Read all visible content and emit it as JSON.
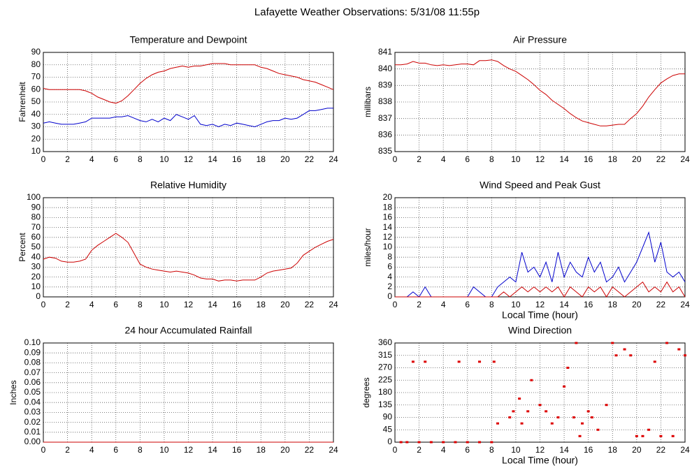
{
  "title": "Lafayette Weather Observations: 5/31/08 11:55p",
  "chart_data": [
    {
      "type": "line",
      "title": "Temperature and Dewpoint",
      "ylabel": "Fahrenheit",
      "x": [
        0,
        0.5,
        1,
        1.5,
        2,
        2.5,
        3,
        3.5,
        4,
        4.5,
        5,
        5.5,
        6,
        6.5,
        7,
        7.5,
        8,
        8.5,
        9,
        9.5,
        10,
        10.5,
        11,
        11.5,
        12,
        12.5,
        13,
        13.5,
        14,
        14.5,
        15,
        15.5,
        16,
        16.5,
        17,
        17.5,
        18,
        18.5,
        19,
        19.5,
        20,
        20.5,
        21,
        21.5,
        22,
        22.5,
        23,
        23.5,
        24
      ],
      "series": [
        {
          "color": "#cc0000",
          "values": [
            61,
            60,
            60,
            60,
            60,
            60,
            60,
            59,
            57,
            54,
            52,
            50,
            49,
            51,
            55,
            60,
            65,
            69,
            72,
            74,
            75,
            77,
            78,
            79,
            78,
            79,
            79,
            80,
            81,
            81,
            81,
            80,
            80,
            80,
            80,
            80,
            78,
            77,
            75,
            73,
            72,
            71,
            70,
            68,
            67,
            66,
            64,
            62,
            60
          ]
        },
        {
          "color": "#0000cc",
          "values": [
            33,
            34,
            33,
            32,
            32,
            32,
            33,
            34,
            37,
            37,
            37,
            37,
            38,
            38,
            39,
            37,
            35,
            34,
            36,
            34,
            37,
            35,
            40,
            38,
            36,
            39,
            32,
            31,
            32,
            30,
            32,
            31,
            33,
            32,
            31,
            30,
            32,
            34,
            35,
            35,
            37,
            36,
            37,
            40,
            43,
            43,
            44,
            45,
            45
          ]
        }
      ],
      "xlim": [
        0,
        24
      ],
      "xticks": [
        0,
        2,
        4,
        6,
        8,
        10,
        12,
        14,
        16,
        18,
        20,
        22,
        24
      ],
      "ylim": [
        10,
        90
      ],
      "yticks": [
        10,
        20,
        30,
        40,
        50,
        60,
        70,
        80,
        90
      ],
      "grid": true
    },
    {
      "type": "line",
      "title": "Air Pressure",
      "ylabel": "millibars",
      "x": [
        0,
        0.5,
        1,
        1.5,
        2,
        2.5,
        3,
        3.5,
        4,
        4.5,
        5,
        5.5,
        6,
        6.5,
        7,
        7.5,
        8,
        8.5,
        9,
        9.5,
        10,
        10.5,
        11,
        11.5,
        12,
        12.5,
        13,
        13.5,
        14,
        14.5,
        15,
        15.5,
        16,
        16.5,
        17,
        17.5,
        18,
        18.5,
        19,
        19.5,
        20,
        20.5,
        21,
        21.5,
        22,
        22.5,
        23,
        23.5,
        24
      ],
      "series": [
        {
          "color": "#cc0000",
          "values": [
            840.25,
            840.25,
            840.3,
            840.45,
            840.35,
            840.35,
            840.25,
            840.2,
            840.25,
            840.2,
            840.25,
            840.3,
            840.3,
            840.25,
            840.5,
            840.5,
            840.55,
            840.45,
            840.2,
            840.0,
            839.85,
            839.6,
            839.35,
            839.05,
            838.7,
            838.45,
            838.1,
            837.85,
            837.6,
            837.3,
            837.05,
            836.85,
            836.75,
            836.65,
            836.55,
            836.55,
            836.6,
            836.65,
            836.65,
            837.0,
            837.3,
            837.75,
            838.3,
            838.75,
            839.15,
            839.4,
            839.6,
            839.7,
            839.7
          ]
        }
      ],
      "xlim": [
        0,
        24
      ],
      "xticks": [
        0,
        2,
        4,
        6,
        8,
        10,
        12,
        14,
        16,
        18,
        20,
        22,
        24
      ],
      "ylim": [
        835,
        841
      ],
      "yticks": [
        835,
        836,
        837,
        838,
        839,
        840,
        841
      ],
      "grid": true
    },
    {
      "type": "line",
      "title": "Relative Humidity",
      "ylabel": "Percent",
      "x": [
        0,
        0.5,
        1,
        1.5,
        2,
        2.5,
        3,
        3.5,
        4,
        4.5,
        5,
        5.5,
        6,
        6.5,
        7,
        7.5,
        8,
        8.5,
        9,
        9.5,
        10,
        10.5,
        11,
        11.5,
        12,
        12.5,
        13,
        13.5,
        14,
        14.5,
        15,
        15.5,
        16,
        16.5,
        17,
        17.5,
        18,
        18.5,
        19,
        19.5,
        20,
        20.5,
        21,
        21.5,
        22,
        22.5,
        23,
        23.5,
        24
      ],
      "series": [
        {
          "color": "#cc0000",
          "values": [
            38,
            40,
            39,
            36,
            35,
            35,
            36,
            38,
            47,
            52,
            56,
            60,
            64,
            60,
            55,
            44,
            33,
            30,
            28,
            27,
            26,
            25,
            26,
            25,
            24,
            22,
            19,
            18,
            18,
            16,
            17,
            17,
            16,
            17,
            17,
            17,
            20,
            24,
            26,
            27,
            28,
            29,
            34,
            42,
            46,
            50,
            53,
            56,
            58
          ]
        }
      ],
      "xlim": [
        0,
        24
      ],
      "xticks": [
        0,
        2,
        4,
        6,
        8,
        10,
        12,
        14,
        16,
        18,
        20,
        22,
        24
      ],
      "ylim": [
        0,
        100
      ],
      "yticks": [
        0,
        10,
        20,
        30,
        40,
        50,
        60,
        70,
        80,
        90,
        100
      ],
      "grid": true
    },
    {
      "type": "line",
      "title": "Wind Speed and Peak Gust",
      "ylabel": "miles/hour",
      "xlabel": "Local Time (hour)",
      "x": [
        0,
        0.5,
        1,
        1.5,
        2,
        2.5,
        3,
        3.5,
        4,
        4.5,
        5,
        5.5,
        6,
        6.5,
        7,
        7.5,
        8,
        8.5,
        9,
        9.5,
        10,
        10.5,
        11,
        11.5,
        12,
        12.5,
        13,
        13.5,
        14,
        14.5,
        15,
        15.5,
        16,
        16.5,
        17,
        17.5,
        18,
        18.5,
        19,
        19.5,
        20,
        20.5,
        21,
        21.5,
        22,
        22.5,
        23,
        23.5,
        24
      ],
      "series": [
        {
          "color": "#0000cc",
          "values": [
            0,
            0,
            0,
            1,
            0,
            2,
            0,
            0,
            0,
            0,
            0,
            0,
            0,
            2,
            1,
            0,
            0,
            2,
            3,
            4,
            3,
            9,
            5,
            6,
            4,
            7,
            3,
            9,
            4,
            7,
            5,
            4,
            8,
            5,
            7,
            3,
            4,
            6,
            3,
            5,
            7,
            10,
            13,
            7,
            11,
            5,
            4,
            5,
            3
          ]
        },
        {
          "color": "#cc0000",
          "values": [
            0,
            0,
            0,
            0,
            0,
            0,
            0,
            0,
            0,
            0,
            0,
            0,
            0,
            0,
            0,
            0,
            0,
            0,
            1,
            0,
            1,
            2,
            1,
            2,
            1,
            2,
            1,
            2,
            0,
            2,
            1,
            0,
            2,
            1,
            2,
            0,
            2,
            1,
            0,
            1,
            2,
            3,
            1,
            2,
            1,
            3,
            1,
            2,
            0
          ]
        }
      ],
      "xlim": [
        0,
        24
      ],
      "xticks": [
        0,
        2,
        4,
        6,
        8,
        10,
        12,
        14,
        16,
        18,
        20,
        22,
        24
      ],
      "ylim": [
        0,
        20
      ],
      "yticks": [
        0,
        2,
        4,
        6,
        8,
        10,
        12,
        14,
        16,
        18,
        20
      ],
      "grid": true
    },
    {
      "type": "line",
      "title": "24 hour Accumulated Rainfall",
      "ylabel": "Inches",
      "x": [
        0,
        24
      ],
      "series": [
        {
          "color": "#cc0000",
          "values": [
            0,
            0
          ]
        }
      ],
      "xlim": [
        0,
        24
      ],
      "xticks": [
        0,
        2,
        4,
        6,
        8,
        10,
        12,
        14,
        16,
        18,
        20,
        22,
        24
      ],
      "ylim": [
        0,
        0.1
      ],
      "yticks": [
        {
          "value": 0,
          "label": "0.00"
        },
        {
          "value": 0.01,
          "label": "0.01"
        },
        {
          "value": 0.02,
          "label": "0.02"
        },
        {
          "value": 0.03,
          "label": "0.03"
        },
        {
          "value": 0.04,
          "label": "0.04"
        },
        {
          "value": 0.05,
          "label": "0.05"
        },
        {
          "value": 0.06,
          "label": "0.06"
        },
        {
          "value": 0.07,
          "label": "0.07"
        },
        {
          "value": 0.08,
          "label": "0.08"
        },
        {
          "value": 0.09,
          "label": "0.09"
        },
        {
          "value": 0.1,
          "label": "0.10"
        }
      ],
      "grid": true
    },
    {
      "type": "scatter",
      "title": "Wind Direction",
      "ylabel": "degrees",
      "xlabel": "Local Time (hour)",
      "x": [
        0.5,
        1,
        2,
        3,
        4,
        5,
        6,
        7,
        8,
        1.5,
        2.5,
        5.3,
        7,
        8.2,
        8.5,
        9.5,
        9.8,
        10.3,
        10.5,
        11,
        11.3,
        12,
        12.5,
        13,
        13.5,
        14,
        14.3,
        14.8,
        15,
        15.3,
        15.5,
        16,
        16.3,
        16.8,
        17.5,
        18,
        18.3,
        19,
        19.5,
        20,
        20.5,
        21,
        21.5,
        22,
        22.5,
        23,
        23.5,
        24
      ],
      "series": [
        {
          "color": "#dd0000",
          "values": [
            0,
            0,
            0,
            0,
            0,
            0,
            0,
            0,
            0,
            292,
            292,
            292,
            292,
            292,
            68,
            90,
            112,
            158,
            68,
            112,
            225,
            135,
            112,
            68,
            90,
            202,
            270,
            90,
            360,
            22,
            68,
            112,
            90,
            45,
            135,
            360,
            315,
            337,
            315,
            22,
            22,
            45,
            292,
            22,
            360,
            22,
            337,
            315
          ]
        }
      ],
      "xlim": [
        0,
        24
      ],
      "xticks": [
        0,
        2,
        4,
        6,
        8,
        10,
        12,
        14,
        16,
        18,
        20,
        22,
        24
      ],
      "ylim": [
        0,
        360
      ],
      "yticks": [
        0,
        45,
        90,
        135,
        180,
        225,
        270,
        315,
        360
      ],
      "grid": true
    }
  ]
}
